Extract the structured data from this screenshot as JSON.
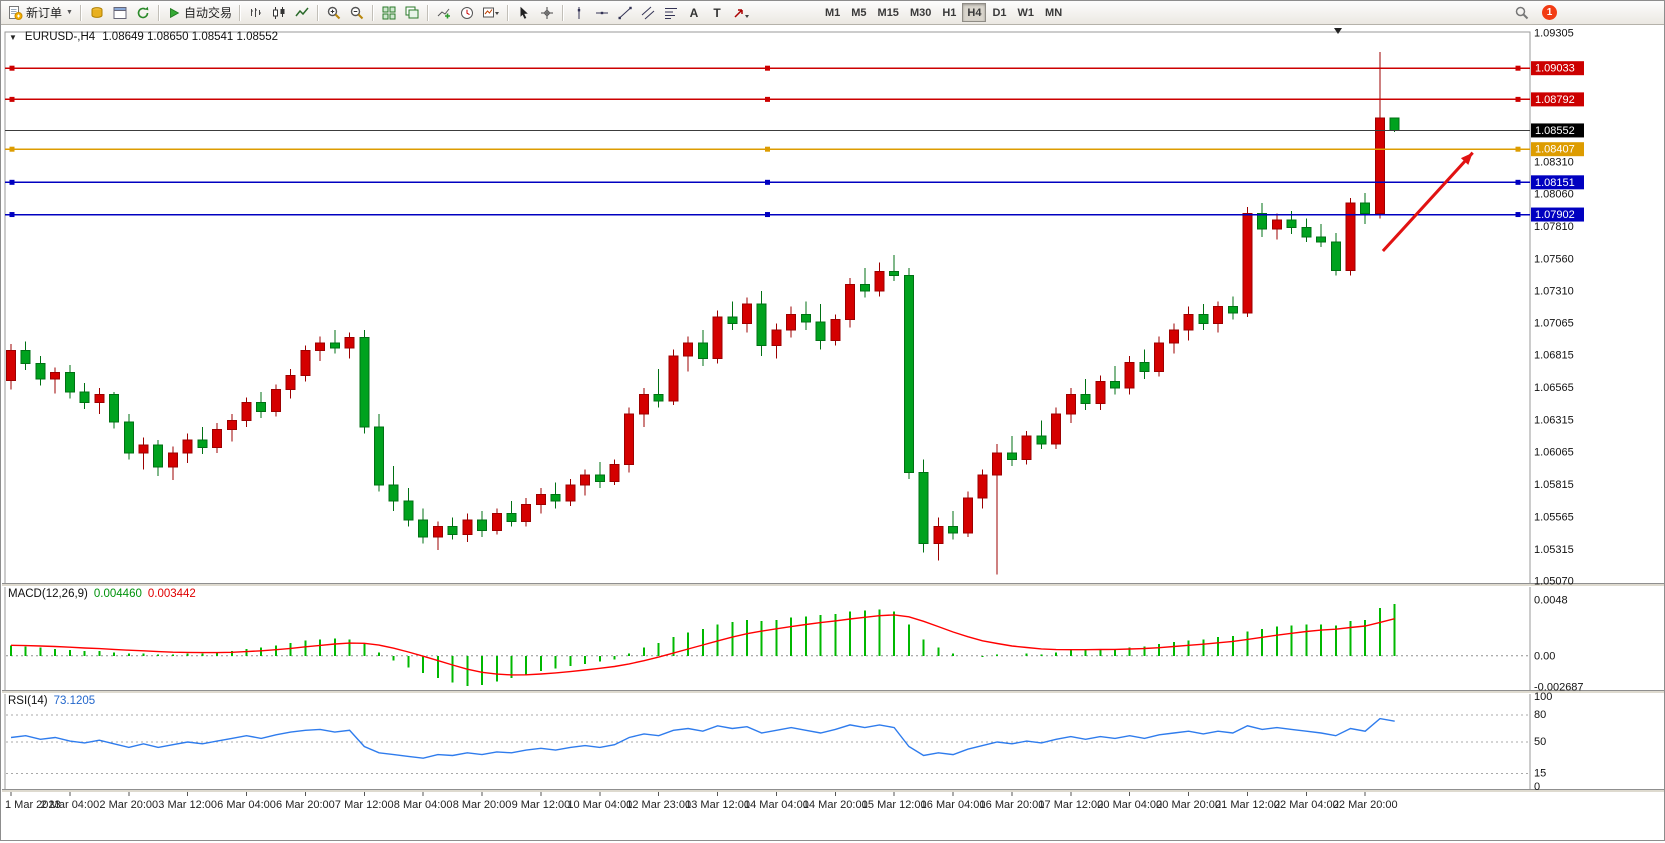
{
  "toolbar": {
    "new_order_label": "新订单",
    "auto_trading_label": "自动交易",
    "timeframes": [
      "M1",
      "M5",
      "M15",
      "M30",
      "H1",
      "H4",
      "D1",
      "W1",
      "MN"
    ],
    "active_timeframe": "H4",
    "notification_count": "1"
  },
  "main_header": {
    "symbol_period": "EURUSD-,H4",
    "ohlc": "1.08649 1.08650 1.08541 1.08552"
  },
  "macd_header": {
    "title": "MACD(12,26,9)",
    "main_value": "0.004460",
    "signal_value": "0.003442"
  },
  "rsi_header": {
    "title": "RSI(14)",
    "value": "73.1205"
  },
  "price_axis": {
    "plain_labels": [
      {
        "text": "1.09305",
        "value": 1.09305
      },
      {
        "text": "1.08310",
        "value": 1.0831
      },
      {
        "text": "1.08060",
        "value": 1.0806
      },
      {
        "text": "1.07810",
        "value": 1.0781
      },
      {
        "text": "1.07560",
        "value": 1.0756
      },
      {
        "text": "1.07310",
        "value": 1.0731
      },
      {
        "text": "1.07065",
        "value": 1.07065
      },
      {
        "text": "1.06815",
        "value": 1.06815
      },
      {
        "text": "1.06565",
        "value": 1.06565
      },
      {
        "text": "1.06315",
        "value": 1.06315
      },
      {
        "text": "1.06065",
        "value": 1.06065
      },
      {
        "text": "1.05815",
        "value": 1.05815
      },
      {
        "text": "1.05565",
        "value": 1.05565
      },
      {
        "text": "1.05315",
        "value": 1.05315
      },
      {
        "text": "1.05070",
        "value": 1.0507
      }
    ]
  },
  "macd_axis": [
    {
      "text": "0.0048",
      "value": 0.0048
    },
    {
      "text": "0.00",
      "value": 0
    },
    {
      "text": "-0.002687",
      "value": -0.002687
    }
  ],
  "rsi_axis": [
    {
      "text": "100",
      "value": 100
    },
    {
      "text": "80",
      "value": 80
    },
    {
      "text": "50",
      "value": 50
    },
    {
      "text": "15",
      "value": 15
    },
    {
      "text": "0",
      "value": 0
    }
  ],
  "chart_data": {
    "type": "candlestick",
    "symbol": "EURUSD-",
    "timeframe": "H4",
    "price_range": [
      1.0507,
      1.09305
    ],
    "colors": {
      "up": "#d40000",
      "up_border": "#9c0000",
      "down": "#00a21e",
      "down_border": "#007014",
      "background": "#ffffff"
    },
    "time_labels": [
      "1 Mar 2023",
      "2 Mar 04:00",
      "2 Mar 20:00",
      "3 Mar 12:00",
      "6 Mar 04:00",
      "6 Mar 20:00",
      "7 Mar 12:00",
      "8 Mar 04:00",
      "8 Mar 20:00",
      "9 Mar 12:00",
      "10 Mar 04:00",
      "12 Mar 23:00",
      "13 Mar 12:00",
      "14 Mar 04:00",
      "14 Mar 20:00",
      "15 Mar 12:00",
      "16 Mar 04:00",
      "16 Mar 20:00",
      "17 Mar 12:00",
      "20 Mar 04:00",
      "20 Mar 20:00",
      "21 Mar 12:00",
      "22 Mar 04:00",
      "22 Mar 20:00"
    ],
    "candles_ohlc": [
      [
        1.0662,
        1.069,
        1.0655,
        1.0685
      ],
      [
        1.0685,
        1.0692,
        1.067,
        1.0675
      ],
      [
        1.0675,
        1.0681,
        1.0658,
        1.0663
      ],
      [
        1.0663,
        1.0672,
        1.0652,
        1.0668
      ],
      [
        1.0668,
        1.0674,
        1.0648,
        1.0653
      ],
      [
        1.0653,
        1.066,
        1.064,
        1.0645
      ],
      [
        1.0645,
        1.0656,
        1.0636,
        1.0651
      ],
      [
        1.0651,
        1.0653,
        1.0625,
        1.063
      ],
      [
        1.063,
        1.0636,
        1.0601,
        1.0606
      ],
      [
        1.0606,
        1.0618,
        1.0593,
        1.0612
      ],
      [
        1.0612,
        1.0616,
        1.0588,
        1.0595
      ],
      [
        1.0595,
        1.0611,
        1.0585,
        1.0606
      ],
      [
        1.0606,
        1.0621,
        1.0598,
        1.0616
      ],
      [
        1.0616,
        1.0626,
        1.0605,
        1.061
      ],
      [
        1.061,
        1.0629,
        1.0606,
        1.0624
      ],
      [
        1.0624,
        1.0636,
        1.0615,
        1.0631
      ],
      [
        1.0631,
        1.0649,
        1.0626,
        1.0645
      ],
      [
        1.0645,
        1.0653,
        1.0633,
        1.0638
      ],
      [
        1.0638,
        1.0659,
        1.0634,
        1.0655
      ],
      [
        1.0655,
        1.0671,
        1.0648,
        1.0666
      ],
      [
        1.0666,
        1.0689,
        1.0661,
        1.0685
      ],
      [
        1.0685,
        1.0696,
        1.0677,
        1.0691
      ],
      [
        1.0691,
        1.0701,
        1.0683,
        1.0687
      ],
      [
        1.0687,
        1.0699,
        1.0679,
        1.0695
      ],
      [
        1.0695,
        1.0701,
        1.0621,
        1.0626
      ],
      [
        1.0626,
        1.0636,
        1.0576,
        1.0581
      ],
      [
        1.0581,
        1.0596,
        1.0561,
        1.0569
      ],
      [
        1.0569,
        1.0579,
        1.0549,
        1.0554
      ],
      [
        1.0554,
        1.0563,
        1.0536,
        1.0541
      ],
      [
        1.0541,
        1.0553,
        1.0531,
        1.0549
      ],
      [
        1.0549,
        1.0556,
        1.0539,
        1.0543
      ],
      [
        1.0543,
        1.0559,
        1.0537,
        1.0554
      ],
      [
        1.0554,
        1.0561,
        1.0541,
        1.0546
      ],
      [
        1.0546,
        1.0563,
        1.0543,
        1.0559
      ],
      [
        1.0559,
        1.0569,
        1.0549,
        1.0553
      ],
      [
        1.0553,
        1.0571,
        1.0549,
        1.0566
      ],
      [
        1.0566,
        1.0579,
        1.0559,
        1.0574
      ],
      [
        1.0574,
        1.0583,
        1.0563,
        1.0569
      ],
      [
        1.0569,
        1.0586,
        1.0565,
        1.0581
      ],
      [
        1.0581,
        1.0593,
        1.0573,
        1.0589
      ],
      [
        1.0589,
        1.0599,
        1.0579,
        1.0584
      ],
      [
        1.0584,
        1.0601,
        1.0581,
        1.0597
      ],
      [
        1.0597,
        1.0641,
        1.0591,
        1.0636
      ],
      [
        1.0636,
        1.0656,
        1.0626,
        1.0651
      ],
      [
        1.0651,
        1.0671,
        1.0641,
        1.0646
      ],
      [
        1.0646,
        1.0686,
        1.0643,
        1.0681
      ],
      [
        1.0681,
        1.0696,
        1.0669,
        1.0691
      ],
      [
        1.0691,
        1.0701,
        1.0673,
        1.0679
      ],
      [
        1.0679,
        1.0716,
        1.0675,
        1.0711
      ],
      [
        1.0711,
        1.0723,
        1.0701,
        1.0706
      ],
      [
        1.0706,
        1.0726,
        1.0699,
        1.0721
      ],
      [
        1.0721,
        1.0731,
        1.0681,
        1.0689
      ],
      [
        1.0689,
        1.0706,
        1.0679,
        1.0701
      ],
      [
        1.0701,
        1.0719,
        1.0695,
        1.0713
      ],
      [
        1.0713,
        1.0723,
        1.0701,
        1.0707
      ],
      [
        1.0707,
        1.0721,
        1.0686,
        1.0693
      ],
      [
        1.0693,
        1.0713,
        1.0689,
        1.0709
      ],
      [
        1.0709,
        1.0741,
        1.0703,
        1.0736
      ],
      [
        1.0736,
        1.0749,
        1.0726,
        1.0731
      ],
      [
        1.0731,
        1.0753,
        1.0727,
        1.0746
      ],
      [
        1.0746,
        1.0759,
        1.0739,
        1.0743
      ],
      [
        1.0743,
        1.0749,
        1.0586,
        1.0591
      ],
      [
        1.0591,
        1.0601,
        1.0529,
        1.0536
      ],
      [
        1.0536,
        1.0556,
        1.0523,
        1.0549
      ],
      [
        1.0549,
        1.0561,
        1.0539,
        1.0544
      ],
      [
        1.0544,
        1.0576,
        1.0541,
        1.0571
      ],
      [
        1.0571,
        1.0593,
        1.0563,
        1.0589
      ],
      [
        1.0589,
        1.0613,
        1.0512,
        1.0606
      ],
      [
        1.0606,
        1.0619,
        1.0596,
        1.0601
      ],
      [
        1.0601,
        1.0623,
        1.0597,
        1.0619
      ],
      [
        1.0619,
        1.0631,
        1.0609,
        1.0613
      ],
      [
        1.0613,
        1.0641,
        1.0609,
        1.0636
      ],
      [
        1.0636,
        1.0656,
        1.0629,
        1.0651
      ],
      [
        1.0651,
        1.0663,
        1.0639,
        1.0644
      ],
      [
        1.0644,
        1.0666,
        1.0639,
        1.0661
      ],
      [
        1.0661,
        1.0673,
        1.0651,
        1.0656
      ],
      [
        1.0656,
        1.0681,
        1.0651,
        1.0676
      ],
      [
        1.0676,
        1.0686,
        1.0663,
        1.0669
      ],
      [
        1.0669,
        1.0696,
        1.0665,
        1.0691
      ],
      [
        1.0691,
        1.0706,
        1.0683,
        1.0701
      ],
      [
        1.0701,
        1.0719,
        1.0693,
        1.0713
      ],
      [
        1.0713,
        1.0721,
        1.0701,
        1.0706
      ],
      [
        1.0706,
        1.0723,
        1.0699,
        1.0719
      ],
      [
        1.0719,
        1.0727,
        1.0709,
        1.0714
      ],
      [
        1.0714,
        1.0796,
        1.0711,
        1.0791
      ],
      [
        1.0791,
        1.0799,
        1.0773,
        1.0779
      ],
      [
        1.0779,
        1.0791,
        1.0771,
        1.0786
      ],
      [
        1.0786,
        1.0793,
        1.0775,
        1.078
      ],
      [
        1.078,
        1.0787,
        1.0769,
        1.0773
      ],
      [
        1.0773,
        1.0783,
        1.0765,
        1.0769
      ],
      [
        1.0769,
        1.0776,
        1.0743,
        1.0747
      ],
      [
        1.0747,
        1.0803,
        1.0743,
        1.0799
      ],
      [
        1.0799,
        1.0807,
        1.0783,
        1.0791
      ],
      [
        1.0791,
        1.0916,
        1.0787,
        1.0865
      ],
      [
        1.08649,
        1.0865,
        1.08541,
        1.08552
      ]
    ],
    "horizontal_lines": [
      {
        "label": "1.09033",
        "price": 1.09033,
        "color": "#cc0000",
        "box_color": "#cc0000",
        "handles": true
      },
      {
        "label": "1.08792",
        "price": 1.08792,
        "color": "#cc0000",
        "box_color": "#cc0000",
        "handles": true
      },
      {
        "label": "1.08552",
        "price": 1.08552,
        "color": "#3c3c3c",
        "box_color": "#000000",
        "handles": false,
        "role": "bid"
      },
      {
        "label": "1.08407",
        "price": 1.08407,
        "color": "#dd9c00",
        "box_color": "#dd9c00",
        "handles": true
      },
      {
        "label": "1.08151",
        "price": 1.08151,
        "color": "#0000c0",
        "box_color": "#0000c0",
        "handles": true
      },
      {
        "label": "1.07902",
        "price": 1.07902,
        "color": "#0000c0",
        "box_color": "#0000c0",
        "handles": true
      }
    ],
    "indicators": {
      "macd": {
        "type": "histogram+signal",
        "range": [
          -0.002687,
          0.0048
        ],
        "hist_color": "#00b800",
        "signal_color": "#ff0000",
        "main_last": 0.00446,
        "signal_last": 0.003442,
        "histogram": [
          0.0009,
          0.0008,
          0.0007,
          0.0006,
          0.0005,
          0.0004,
          0.0004,
          0.0003,
          0.0002,
          0.0002,
          0.0001,
          0.0001,
          0.0002,
          0.0002,
          0.0003,
          0.0004,
          0.0006,
          0.0007,
          0.0009,
          0.0011,
          0.0013,
          0.0014,
          0.0015,
          0.0014,
          0.001,
          0.0003,
          -0.0004,
          -0.001,
          -0.0015,
          -0.0019,
          -0.0023,
          -0.0026,
          -0.0025,
          -0.0022,
          -0.0019,
          -0.0016,
          -0.0013,
          -0.0011,
          -0.0009,
          -0.0007,
          -0.0005,
          -0.0003,
          0.0002,
          0.0007,
          0.0011,
          0.0016,
          0.002,
          0.0023,
          0.0027,
          0.0029,
          0.0031,
          0.003,
          0.0031,
          0.0033,
          0.0034,
          0.0035,
          0.0036,
          0.0038,
          0.0039,
          0.004,
          0.0038,
          0.0027,
          0.0014,
          0.0007,
          0.0002,
          0.0,
          -0.0001,
          0.0001,
          0.0,
          0.0002,
          0.0001,
          0.0003,
          0.0005,
          0.0005,
          0.0006,
          0.0006,
          0.0007,
          0.0008,
          0.001,
          0.0012,
          0.0013,
          0.0014,
          0.0016,
          0.0017,
          0.0021,
          0.0023,
          0.0025,
          0.0026,
          0.0027,
          0.0027,
          0.0026,
          0.003,
          0.0031,
          0.0041,
          0.00446
        ]
      },
      "rsi": {
        "type": "line",
        "range": [
          0,
          100
        ],
        "levels": [
          80,
          50,
          15
        ],
        "color": "#2f7ced",
        "last": 73.1205,
        "values": [
          55,
          57,
          53,
          55,
          51,
          49,
          52,
          48,
          44,
          48,
          44,
          47,
          50,
          48,
          51,
          54,
          57,
          54,
          58,
          61,
          63,
          64,
          61,
          63,
          45,
          38,
          36,
          34,
          32,
          36,
          35,
          38,
          36,
          39,
          38,
          41,
          43,
          41,
          44,
          46,
          44,
          47,
          55,
          59,
          57,
          63,
          65,
          62,
          68,
          65,
          67,
          60,
          63,
          66,
          63,
          60,
          64,
          69,
          66,
          69,
          66,
          45,
          35,
          38,
          36,
          42,
          46,
          50,
          48,
          51,
          49,
          53,
          56,
          53,
          56,
          54,
          57,
          54,
          58,
          60,
          62,
          59,
          62,
          60,
          68,
          64,
          66,
          64,
          62,
          60,
          57,
          65,
          62,
          76,
          73.12
        ]
      }
    },
    "trend_arrow": {
      "from_candle": 93.2,
      "from_price": 1.0762,
      "to_candle": 99.3,
      "to_price": 1.0838,
      "color": "#e11212"
    }
  }
}
